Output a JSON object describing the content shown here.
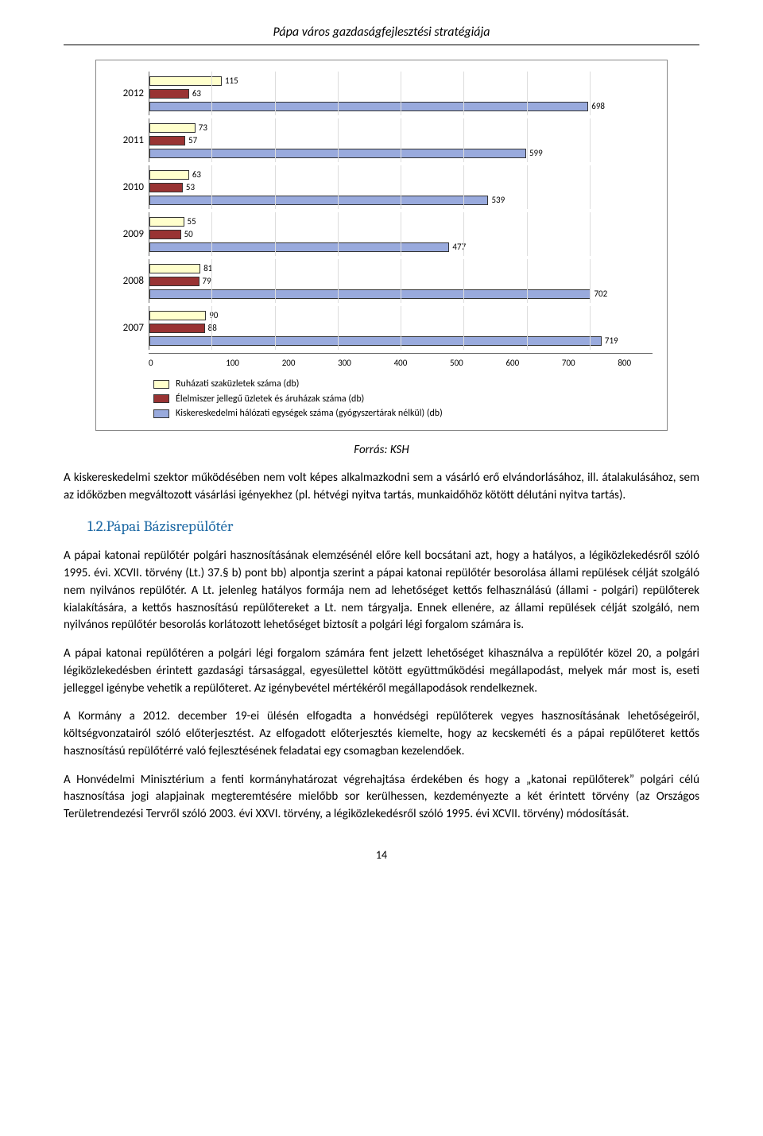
{
  "header": {
    "title": "Pápa város gazdaságfejlesztési stratégiája"
  },
  "chart": {
    "type": "horizontal_bar_grouped",
    "x_max": 800,
    "x_ticks": [
      0,
      100,
      200,
      300,
      400,
      500,
      600,
      700,
      800
    ],
    "years": [
      "2012",
      "2011",
      "2010",
      "2009",
      "2008",
      "2007"
    ],
    "series": {
      "ru": {
        "label": "Ruházati szaküzletek száma (db)",
        "color": "#ffffcc"
      },
      "el": {
        "label": "Élelmiszer jellegű üzletek és áruházak száma (db)",
        "color": "#993333"
      },
      "ki": {
        "label": "Kiskereskedelmi hálózati egységek száma (gyógyszertárak nélkül) (db)",
        "color": "#99aadd"
      }
    },
    "data": {
      "2012": {
        "ru": 115,
        "el": 63,
        "ki": 698
      },
      "2011": {
        "ru": 73,
        "el": 57,
        "ki": 599
      },
      "2010": {
        "ru": 63,
        "el": 53,
        "ki": 539
      },
      "2009": {
        "ru": 55,
        "el": 50,
        "ki": 477
      },
      "2008": {
        "ru": 81,
        "el": 79,
        "ki": 702
      },
      "2007": {
        "ru": 90,
        "el": 88,
        "ki": 719
      }
    },
    "bar_border": "#333333",
    "grid_color": "#dddddd",
    "label_fontsize": 11
  },
  "source": "Forrás: KSH",
  "para1": "A kiskereskedelmi szektor működésében nem volt képes alkalmazkodni sem a vásárló erő elvándorlásához, ill. átalakulásához, sem az időközben megváltozott vásárlási igényekhez (pl. hétvégi nyitva tartás, munkaidőhöz kötött délutáni nyitva tartás).",
  "section_heading": "1.2.Pápai Bázisrepülőtér",
  "para2": "A pápai katonai repülőtér polgári hasznosításának elemzésénél előre kell bocsátani azt, hogy a hatályos, a légiközlekedésről szóló 1995. évi. XCVII. törvény (Lt.) 37.§ b) pont bb) alpontja szerint a pápai katonai repülőtér besorolása állami repülések célját szolgáló nem nyilvános repülőtér. A Lt. jelenleg hatályos formája nem ad lehetőséget kettős felhasználású (állami - polgári) repülőterek kialakítására, a kettős hasznosítású repülőtereket a Lt. nem tárgyalja. Ennek ellenére, az állami repülések célját szolgáló, nem nyilvános repülőtér besorolás korlátozott lehetőséget biztosít a polgári légi forgalom számára is.",
  "para3": "A pápai katonai repülőtéren a polgári légi forgalom számára fent jelzett lehetőséget kihasználva a repülőtér közel 20, a polgári légiközlekedésben érintett gazdasági társasággal, egyesülettel kötött együttműködési megállapodást, melyek már most is, eseti jelleggel igénybe vehetik a repülőteret. Az igénybevétel mértékéről megállapodások rendelkeznek.",
  "para4": "A Kormány a 2012. december 19-ei ülésén elfogadta a honvédségi repülőterek vegyes hasznosításának lehetőségeiről, költségvonzatairól szóló előterjesztést. Az elfogadott előterjesztés kiemelte, hogy az kecskeméti és a pápai repülőteret kettős hasznosítású repülőtérré való fejlesztésének feladatai egy csomagban kezelendőek.",
  "para5": "A Honvédelmi Minisztérium a fenti kormányhatározat végrehajtása érdekében és hogy a „katonai repülőterek” polgári célú hasznosítása jogi alapjainak megteremtésére mielőbb sor kerülhessen, kezdeményezte a két érintett törvény (az Országos Területrendezési Tervről szóló 2003. évi XXVI. törvény, a légiközlekedésről szóló 1995. évi XCVII. törvény) módosítását.",
  "page_number": "14"
}
